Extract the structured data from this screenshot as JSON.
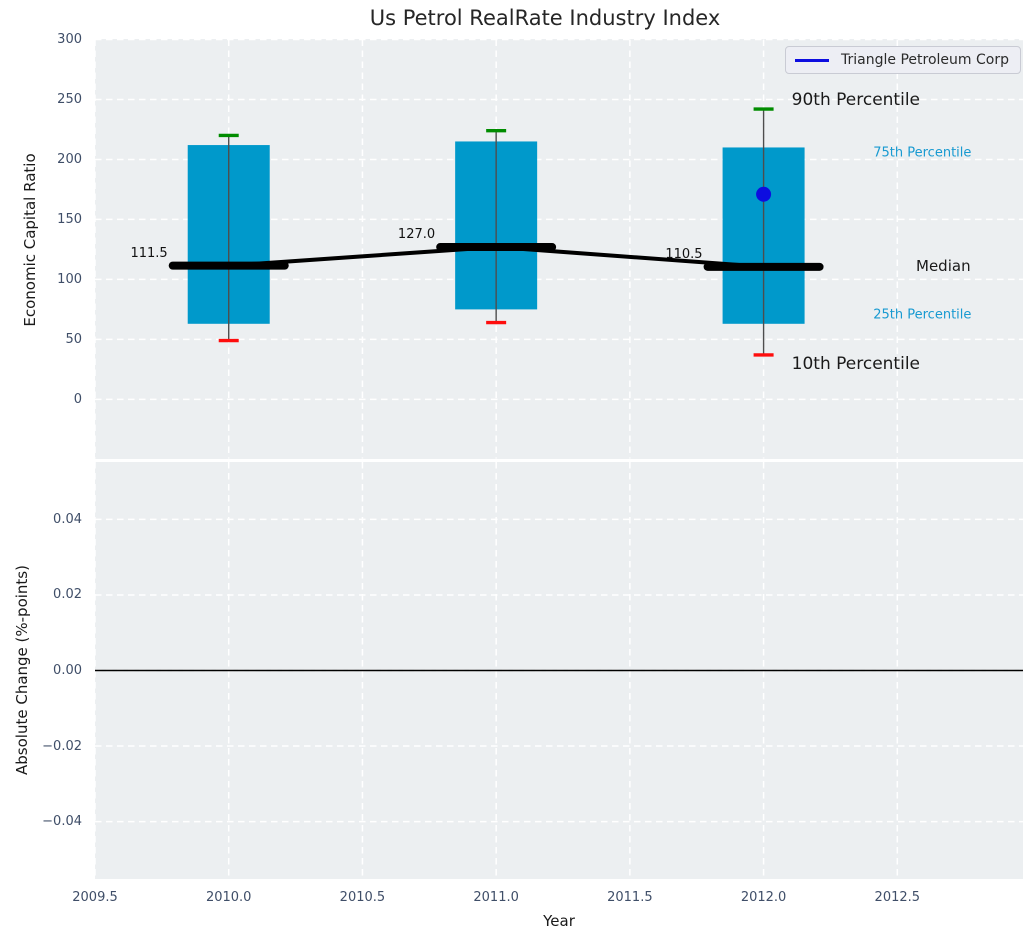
{
  "title": "Us Petrol RealRate Industry Index",
  "legend": {
    "label": "Triangle Petroleum Corp",
    "line_color": "#0d0de0"
  },
  "colors": {
    "axes_background": "#eceff1",
    "grid": "#ffffff",
    "box_fill": "#0099cb",
    "whisker_line": "#4d4d4d",
    "cap_high_green": "#008c00",
    "cap_low_red": "#fe0d0d",
    "median_black": "#000000",
    "point_blue": "#0d0de0",
    "percentile_cyan": "#189ad1",
    "tick_text": "#3f4e68"
  },
  "chart_data": [
    {
      "type": "box",
      "subplot": "top",
      "ylabel": "Economic Capital Ratio",
      "ylim": [
        -49.3,
        300
      ],
      "xlim": [
        2009.5,
        2012.97
      ],
      "yticks": [
        0,
        50,
        100,
        150,
        200,
        250,
        300
      ],
      "ytick_labels": [
        "0",
        "50",
        "100",
        "150",
        "200",
        "250",
        "300"
      ],
      "grid": "white dashed",
      "legend_position": "upper right",
      "categories": [
        2010,
        2011,
        2012
      ],
      "boxes": [
        {
          "x": 2010,
          "whisker_low": 49,
          "q1": 63,
          "median": 111.5,
          "q3": 212,
          "whisker_high": 220
        },
        {
          "x": 2011,
          "whisker_low": 64,
          "q1": 75,
          "median": 127.0,
          "q3": 215,
          "whisker_high": 224
        },
        {
          "x": 2012,
          "whisker_low": 37,
          "q1": 63,
          "median": 110.5,
          "q3": 210,
          "whisker_high": 242
        }
      ],
      "median_labels": [
        "111.5",
        "127.0",
        "110.5"
      ],
      "median_trend_line": [
        [
          2010,
          111.5
        ],
        [
          2011,
          127.0
        ],
        [
          2012,
          110.5
        ]
      ],
      "points": [
        {
          "series": "Triangle Petroleum Corp",
          "x": 2012,
          "y": 171,
          "color": "#0d0de0"
        }
      ],
      "annotations": [
        {
          "text": "90th Percentile",
          "x": 2012.105,
          "y": 249.5,
          "color": "#1a1a1a",
          "size": 17
        },
        {
          "text": "75th Percentile",
          "x": 2012.41,
          "y": 205.5,
          "color": "#189ad1",
          "size": 13
        },
        {
          "text": "Median",
          "x": 2012.57,
          "y": 111.0,
          "color": "#1a1a1a",
          "size": 15
        },
        {
          "text": "25th Percentile",
          "x": 2012.41,
          "y": 70.5,
          "color": "#189ad1",
          "size": 13
        },
        {
          "text": "10th Percentile",
          "x": 2012.105,
          "y": 29.5,
          "color": "#1a1a1a",
          "size": 17
        }
      ]
    },
    {
      "type": "empty",
      "subplot": "bottom",
      "ylabel": "Absolute Change (%-points)",
      "xlabel": "Year",
      "ylim": [
        -0.0552,
        0.0552
      ],
      "yticks": [
        0.04,
        0.02,
        0.0,
        -0.02,
        -0.04
      ],
      "ytick_labels": [
        "0.04",
        "0.02",
        "0.00",
        "−0.02",
        "−0.04"
      ],
      "xticks": [
        2009.5,
        2010.0,
        2010.5,
        2011.0,
        2011.5,
        2012.0,
        2012.5
      ],
      "xtick_labels": [
        "2009.5",
        "2010.0",
        "2010.5",
        "2011.0",
        "2011.5",
        "2012.0",
        "2012.5"
      ],
      "zero_line": 0.0,
      "series": []
    }
  ]
}
